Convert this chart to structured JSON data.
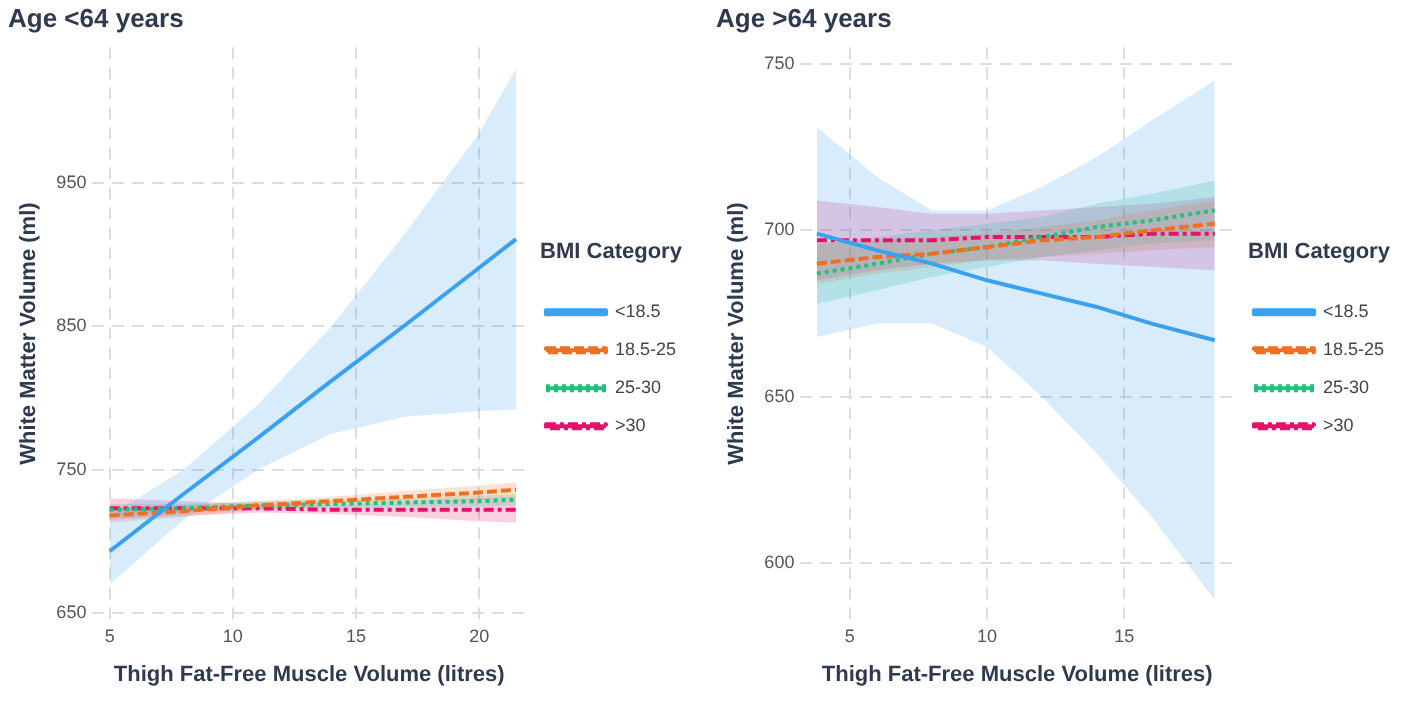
{
  "chart_data": [
    {
      "type": "line",
      "title": "Age <64 years",
      "xlabel": "Thigh Fat-Free Muscle Volume (litres)",
      "ylabel": "White Matter Volume (ml)",
      "legend_title": "BMI Category",
      "x": [
        5,
        8,
        11,
        14,
        17,
        20,
        21.5
      ],
      "series": [
        {
          "name": "<18.5",
          "color": "#3aa0f0",
          "line_style": "solid",
          "values": [
            693,
            733,
            772,
            812,
            851,
            891,
            911
          ],
          "lower": [
            670,
            715,
            750,
            775,
            787,
            791,
            792
          ],
          "upper": [
            718,
            750,
            795,
            850,
            915,
            985,
            1030
          ]
        },
        {
          "name": "18.5-25",
          "color": "#f07020",
          "line_style": "dashed",
          "values": [
            718,
            721,
            725,
            728,
            731,
            734,
            736
          ],
          "lower": [
            713,
            717,
            722,
            725,
            727,
            729,
            731
          ],
          "upper": [
            723,
            725,
            728,
            731,
            735,
            739,
            741
          ]
        },
        {
          "name": "25-30",
          "color": "#20c080",
          "line_style": "dotted",
          "values": [
            722,
            723,
            725,
            726,
            727,
            728,
            729
          ],
          "lower": [
            718,
            720,
            722,
            723,
            724,
            724,
            725
          ],
          "upper": [
            726,
            726,
            728,
            729,
            730,
            732,
            733
          ]
        },
        {
          "name": ">30",
          "color": "#e8106a",
          "line_style": "dashdot",
          "values": [
            723,
            723,
            723,
            722,
            722,
            722,
            722
          ],
          "lower": [
            715,
            718,
            720,
            719,
            717,
            714,
            713
          ],
          "upper": [
            730,
            728,
            726,
            725,
            727,
            730,
            731
          ]
        }
      ],
      "xlim": [
        4.3,
        21.9
      ],
      "ylim": [
        645,
        1045
      ],
      "xticks": [
        5,
        10,
        15,
        20
      ],
      "yticks": [
        650,
        750,
        850,
        950
      ],
      "grid": true,
      "legend": "right"
    },
    {
      "type": "line",
      "title": "Age >64 years",
      "xlabel": "Thigh Fat-Free Muscle Volume (litres)",
      "ylabel": "White Matter Volume (ml)",
      "legend_title": "BMI Category",
      "x": [
        3.8,
        6,
        8,
        10,
        12,
        14,
        16,
        18.3
      ],
      "series": [
        {
          "name": "<18.5",
          "color": "#3aa0f0",
          "line_style": "solid",
          "values": [
            699,
            694,
            690,
            685,
            681,
            677,
            672,
            667
          ],
          "lower": [
            668,
            672,
            672,
            665,
            650,
            633,
            614,
            589
          ],
          "upper": [
            731,
            716,
            706,
            706,
            713,
            722,
            733,
            745
          ]
        },
        {
          "name": "18.5-25",
          "color": "#f07020",
          "line_style": "dashed",
          "values": [
            690,
            692,
            693,
            695,
            697,
            698,
            700,
            702
          ],
          "lower": [
            684,
            687,
            689,
            691,
            692,
            693,
            694,
            695
          ],
          "upper": [
            696,
            697,
            698,
            699,
            701,
            703,
            706,
            709
          ]
        },
        {
          "name": "25-30",
          "color": "#20c080",
          "line_style": "dotted",
          "values": [
            687,
            690,
            693,
            695,
            698,
            701,
            703,
            706
          ],
          "lower": [
            678,
            682,
            686,
            689,
            692,
            694,
            696,
            697
          ],
          "upper": [
            696,
            698,
            700,
            702,
            704,
            708,
            711,
            715
          ]
        },
        {
          "name": ">30",
          "color": "#e8106a",
          "line_style": "dashdot",
          "values": [
            697,
            697,
            697,
            698,
            698,
            698,
            699,
            699
          ],
          "lower": [
            685,
            688,
            690,
            691,
            691,
            690,
            689,
            688
          ],
          "upper": [
            709,
            707,
            705,
            705,
            706,
            707,
            708,
            710
          ]
        }
      ],
      "xlim": [
        3.2,
        19
      ],
      "ylim": [
        583,
        755
      ],
      "xticks": [
        5,
        10,
        15
      ],
      "yticks": [
        600,
        650,
        700,
        750
      ],
      "grid": true,
      "legend": "right"
    }
  ]
}
